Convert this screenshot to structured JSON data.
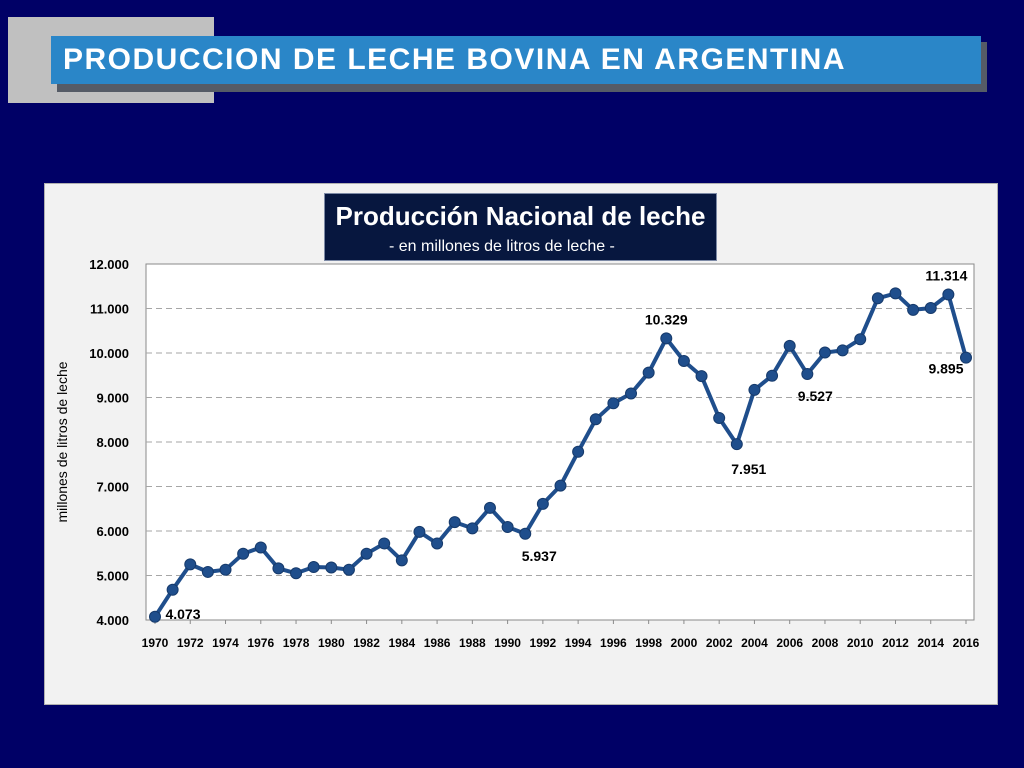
{
  "slide": {
    "title": "PRODUCCION DE LECHE BOVINA EN ARGENTINA",
    "colors": {
      "background": "#000066",
      "banner": "#2a86c8",
      "panel": "#f2f2f2",
      "title_box": "#07173f",
      "series": "#1f4e8c"
    }
  },
  "chart_data": {
    "type": "line",
    "title": "Producción Nacional de leche",
    "subtitle": "- en millones de litros de leche -",
    "xlabel": "",
    "ylabel": "millones de litros de leche",
    "ylim": [
      4000,
      12000
    ],
    "xlim": [
      1970,
      2016
    ],
    "yticks": [
      "4.000",
      "5.000",
      "6.000",
      "7.000",
      "8.000",
      "9.000",
      "10.000",
      "11.000",
      "12.000"
    ],
    "xticks": [
      "1970",
      "1972",
      "1974",
      "1976",
      "1978",
      "1980",
      "1982",
      "1984",
      "1986",
      "1988",
      "1990",
      "1992",
      "1994",
      "1996",
      "1998",
      "2000",
      "2002",
      "2004",
      "2006",
      "2008",
      "2010",
      "2012",
      "2014",
      "2016"
    ],
    "grid": true,
    "legend": "none",
    "x": [
      1970,
      1971,
      1972,
      1973,
      1974,
      1975,
      1976,
      1977,
      1978,
      1979,
      1980,
      1981,
      1982,
      1983,
      1984,
      1985,
      1986,
      1987,
      1988,
      1989,
      1990,
      1991,
      1992,
      1993,
      1994,
      1995,
      1996,
      1997,
      1998,
      1999,
      2000,
      2001,
      2002,
      2003,
      2004,
      2005,
      2006,
      2007,
      2008,
      2009,
      2010,
      2011,
      2012,
      2013,
      2014,
      2015,
      2016
    ],
    "values": [
      4073,
      4680,
      5250,
      5080,
      5130,
      5490,
      5630,
      5160,
      5050,
      5190,
      5180,
      5130,
      5490,
      5720,
      5340,
      5980,
      5720,
      6200,
      6060,
      6520,
      6090,
      5937,
      6610,
      7020,
      7780,
      8510,
      8870,
      9090,
      9560,
      10329,
      9820,
      9480,
      8540,
      7951,
      9170,
      9490,
      10160,
      9527,
      10010,
      10060,
      10310,
      11230,
      11340,
      10970,
      11010,
      11314,
      9895
    ],
    "annotations": [
      {
        "x": 1970,
        "value": 4073,
        "label": "4.073"
      },
      {
        "x": 1991,
        "value": 5937,
        "label": "5.937"
      },
      {
        "x": 1999,
        "value": 10329,
        "label": "10.329"
      },
      {
        "x": 2003,
        "value": 7951,
        "label": "7.951"
      },
      {
        "x": 2007,
        "value": 9527,
        "label": "9.527"
      },
      {
        "x": 2015,
        "value": 11314,
        "label": "11.314"
      },
      {
        "x": 2016,
        "value": 9895,
        "label": "9.895"
      }
    ]
  }
}
